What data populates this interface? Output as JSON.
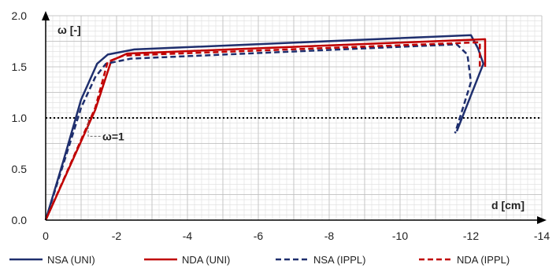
{
  "chart_data": {
    "type": "line",
    "xlabel": "d [cm]",
    "ylabel": "ω [-]",
    "xlim": [
      0,
      -14
    ],
    "ylim": [
      0,
      2.0
    ],
    "x_ticks": [
      "0",
      "-2",
      "-4",
      "-6",
      "-8",
      "-10",
      "-12",
      "-14"
    ],
    "y_ticks": [
      "0.0",
      "0.5",
      "1.0",
      "1.5",
      "2.0"
    ],
    "grid": true,
    "legend_position": "bottom",
    "reference_line": {
      "y": 1.0,
      "label": "ω=1",
      "style": "dotted",
      "color": "#000000"
    },
    "series": [
      {
        "name": "NSA (UNI)",
        "color": "#1f2f6e",
        "dash": "solid",
        "x": [
          0,
          -0.5,
          -1.0,
          -1.45,
          -1.75,
          -2.5,
          -12.0,
          -12.2,
          -12.35,
          -11.6
        ],
        "y": [
          0,
          0.58,
          1.18,
          1.53,
          1.62,
          1.67,
          1.81,
          1.68,
          1.53,
          0.87
        ]
      },
      {
        "name": "NDA (UNI)",
        "color": "#c00000",
        "dash": "solid",
        "x": [
          0,
          -1.4,
          -1.85,
          -2.3,
          -12.4,
          -12.4
        ],
        "y": [
          0,
          1.08,
          1.56,
          1.63,
          1.77,
          1.5
        ]
      },
      {
        "name": "NSA (IPPL)",
        "color": "#1f2f6e",
        "dash": "dashed",
        "x": [
          0,
          -0.5,
          -1.0,
          -1.4,
          -1.7,
          -2.4,
          -11.6,
          -11.9,
          -12.0,
          -11.55
        ],
        "y": [
          0,
          0.55,
          1.1,
          1.4,
          1.53,
          1.58,
          1.72,
          1.62,
          1.35,
          0.85
        ]
      },
      {
        "name": "NDA (IPPL)",
        "color": "#c00000",
        "dash": "dashed",
        "x": [
          0,
          -1.4,
          -1.75,
          -2.2,
          -12.25,
          -12.25
        ],
        "y": [
          0,
          1.1,
          1.55,
          1.61,
          1.74,
          1.5
        ]
      }
    ]
  }
}
